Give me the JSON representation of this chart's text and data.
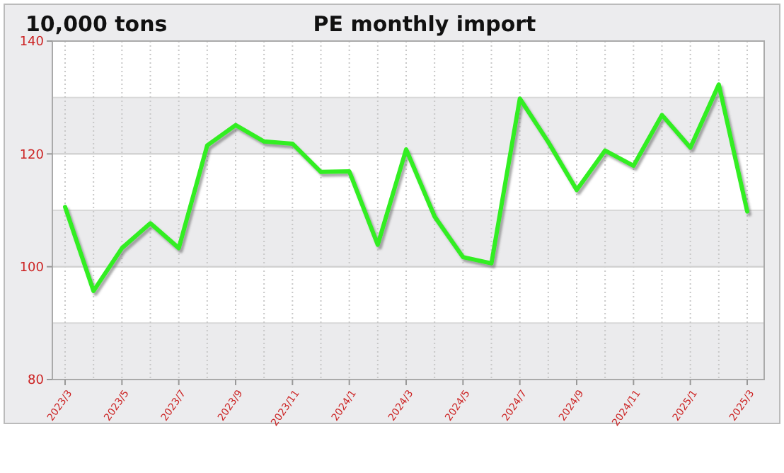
{
  "chart_data": {
    "type": "line",
    "title": "PE monthly import",
    "ylabel": "10,000 tons",
    "categories": [
      "2023/3",
      null,
      "2023/5",
      null,
      "2023/7",
      null,
      "2023/9",
      null,
      "2023/11",
      null,
      "2024/1",
      null,
      "2024/3",
      null,
      "2024/5",
      null,
      "2024/7",
      null,
      "2024/9",
      null,
      "2024/11",
      null,
      "2025/1",
      null,
      "2025/3"
    ],
    "series": [
      {
        "color": "#33ee22",
        "values": [
          110.6,
          95.7,
          103.3,
          107.7,
          103.3,
          121.5,
          125.1,
          122.2,
          121.8,
          116.8,
          116.9,
          103.9,
          120.8,
          108.9,
          101.7,
          100.6,
          129.8,
          122.1,
          113.6,
          120.6,
          117.9,
          126.9,
          121.1,
          132.3,
          109.8
        ]
      }
    ],
    "ylim": [
      80,
      140
    ],
    "yticks": [
      80,
      100,
      120,
      140
    ],
    "bands": [
      {
        "axis": "y",
        "from": 80,
        "to": 90,
        "color": "#ebebed"
      },
      {
        "axis": "y",
        "from": 100,
        "to": 110,
        "color": "#ebebed"
      },
      {
        "axis": "y",
        "from": 120,
        "to": 130,
        "color": "#ebebed"
      }
    ],
    "grid": true,
    "marker": "none",
    "line_style": "solid"
  }
}
